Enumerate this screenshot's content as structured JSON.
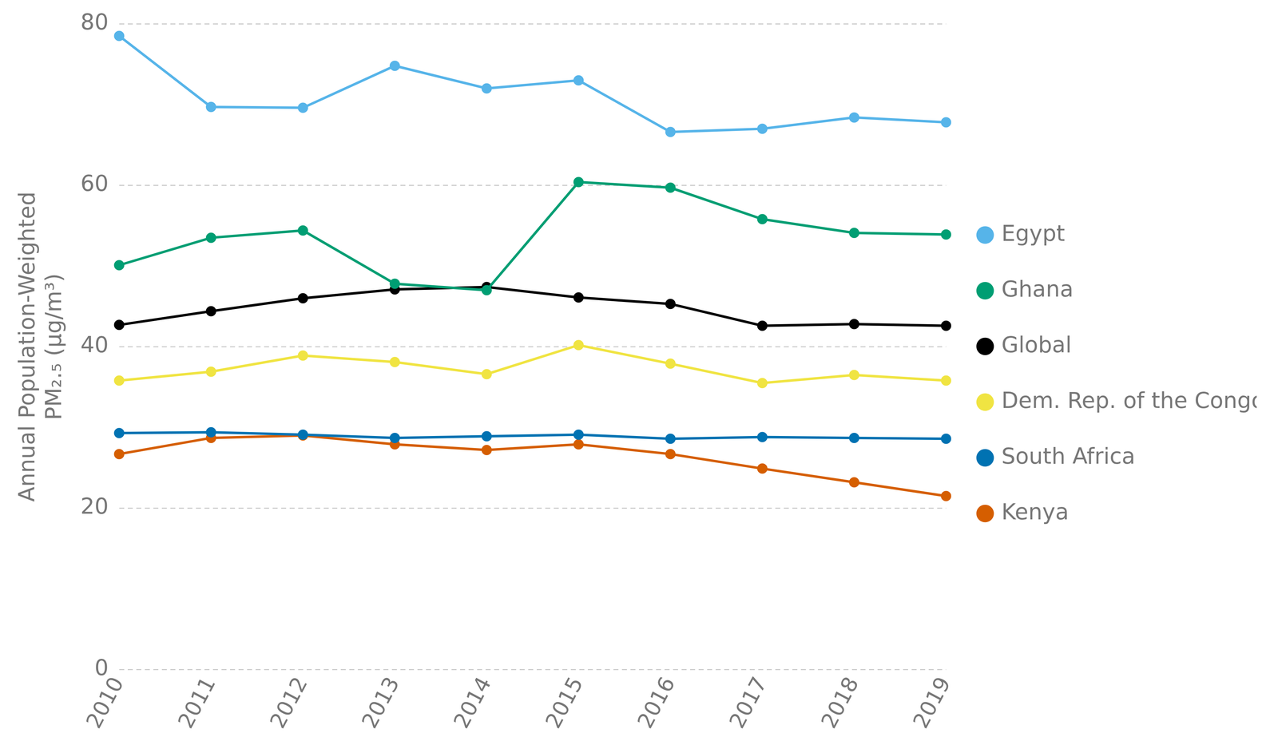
{
  "chart_data": {
    "type": "line",
    "y_label": [
      "Annual Population-Weighted",
      "PM₂.₅ (µg/m³)"
    ],
    "categories": [
      "2010",
      "2011",
      "2012",
      "2013",
      "2014",
      "2015",
      "2016",
      "2017",
      "2018",
      "2019"
    ],
    "series": [
      {
        "name": "Egypt",
        "color": "#56b4e9",
        "values": [
          78.5,
          69.7,
          69.6,
          74.8,
          72.0,
          73.0,
          66.6,
          67.0,
          68.4,
          67.8
        ]
      },
      {
        "name": "Ghana",
        "color": "#009e73",
        "values": [
          50.1,
          53.5,
          54.4,
          47.8,
          47.0,
          60.4,
          59.7,
          55.8,
          54.1,
          53.9
        ]
      },
      {
        "name": "Global",
        "color": "#000000",
        "values": [
          42.7,
          44.4,
          46.0,
          47.1,
          47.4,
          46.1,
          45.3,
          42.6,
          42.8,
          42.6
        ]
      },
      {
        "name": "Dem. Rep. of the Congo",
        "color": "#f0e442",
        "values": [
          35.8,
          36.9,
          38.9,
          38.1,
          36.6,
          40.2,
          37.9,
          35.5,
          36.5,
          35.8
        ]
      },
      {
        "name": "South Africa",
        "color": "#0072b2",
        "values": [
          29.3,
          29.4,
          29.1,
          28.7,
          28.9,
          29.1,
          28.6,
          28.8,
          28.7,
          28.6
        ]
      },
      {
        "name": "Kenya",
        "color": "#d55e00",
        "values": [
          26.7,
          28.7,
          29.0,
          27.9,
          27.2,
          27.9,
          26.7,
          24.9,
          23.2,
          21.5
        ]
      }
    ],
    "ylim": [
      0,
      80
    ],
    "yticks": [
      0,
      20,
      40,
      60,
      80
    ],
    "grid": true,
    "legend": "right",
    "marker": "circle"
  }
}
